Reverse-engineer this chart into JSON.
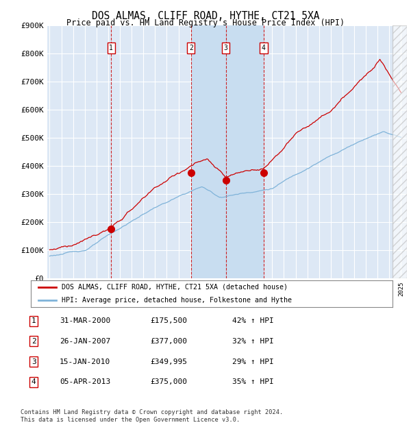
{
  "title": "DOS ALMAS, CLIFF ROAD, HYTHE, CT21 5XA",
  "subtitle": "Price paid vs. HM Land Registry's House Price Index (HPI)",
  "ylim": [
    0,
    900000
  ],
  "yticks": [
    0,
    100000,
    200000,
    300000,
    400000,
    500000,
    600000,
    700000,
    800000,
    900000
  ],
  "ytick_labels": [
    "£0",
    "£100K",
    "£200K",
    "£300K",
    "£400K",
    "£500K",
    "£600K",
    "£700K",
    "£800K",
    "£900K"
  ],
  "background_color": "#ffffff",
  "plot_bg_color": "#dde8f5",
  "shaded_region_color": "#c8ddf0",
  "grid_color": "#ffffff",
  "hpi_line_color": "#7fb3d9",
  "price_line_color": "#cc0000",
  "dashed_line_color": "#cc0000",
  "legend_label_red": "DOS ALMAS, CLIFF ROAD, HYTHE, CT21 5XA (detached house)",
  "legend_label_blue": "HPI: Average price, detached house, Folkestone and Hythe",
  "transactions": [
    {
      "label": "1",
      "date": "31-MAR-2000",
      "price": 175500,
      "pct": "42%",
      "x_year": 2000.25
    },
    {
      "label": "2",
      "date": "26-JAN-2007",
      "price": 377000,
      "pct": "32%",
      "x_year": 2007.07
    },
    {
      "label": "3",
      "date": "15-JAN-2010",
      "price": 349995,
      "pct": "29%",
      "x_year": 2010.04
    },
    {
      "label": "4",
      "date": "05-APR-2013",
      "price": 375000,
      "pct": "35%",
      "x_year": 2013.27
    }
  ],
  "table_rows": [
    [
      "1",
      "31-MAR-2000",
      "£175,500",
      "42% ↑ HPI"
    ],
    [
      "2",
      "26-JAN-2007",
      "£377,000",
      "32% ↑ HPI"
    ],
    [
      "3",
      "15-JAN-2010",
      "£349,995",
      "29% ↑ HPI"
    ],
    [
      "4",
      "05-APR-2013",
      "£375,000",
      "35% ↑ HPI"
    ]
  ],
  "footer": "Contains HM Land Registry data © Crown copyright and database right 2024.\nThis data is licensed under the Open Government Licence v3.0.",
  "xmin": 1994.8,
  "xmax": 2025.5,
  "hatch_start": 2024.3,
  "shaded_x1": 2007.07,
  "shaded_x2": 2013.27
}
